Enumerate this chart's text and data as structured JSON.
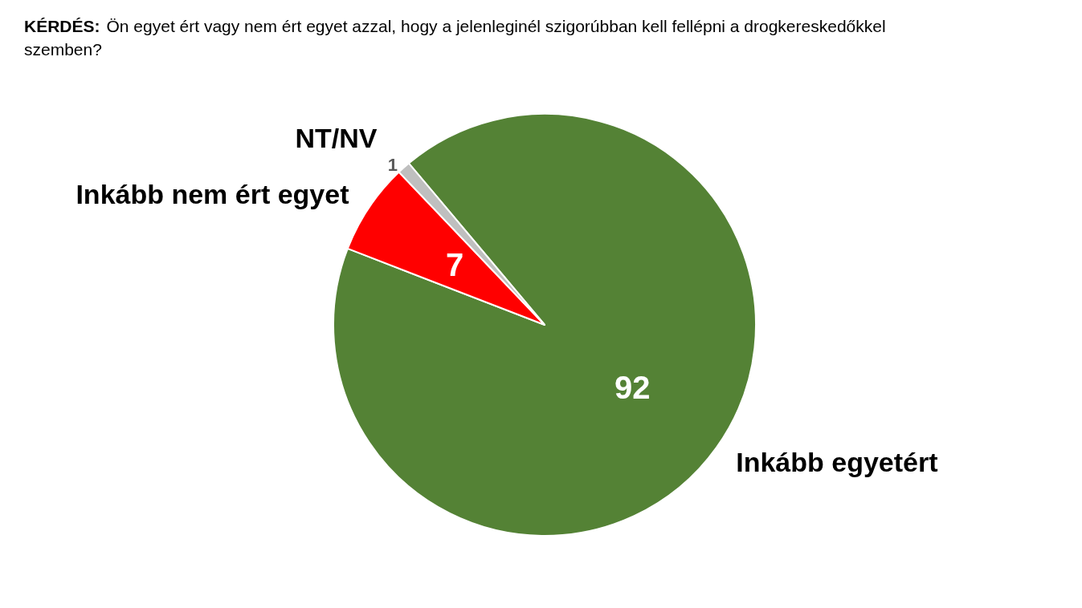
{
  "chart_data": {
    "type": "pie",
    "title": "KÉRDÉS:",
    "subtitle": "Ön egyet ért vagy nem ért egyet azzal, hogy a jelenleginél szigorúbban kell fellépni a drogkereskedőkkel szemben?",
    "categories": [
      "Inkább egyetért",
      "Inkább nem ért egyet",
      "NT/NV"
    ],
    "values": [
      92,
      7,
      1
    ],
    "colors": [
      "#548235",
      "#ff0000",
      "#bfbfbf"
    ],
    "data_labels": true,
    "legend": false
  }
}
